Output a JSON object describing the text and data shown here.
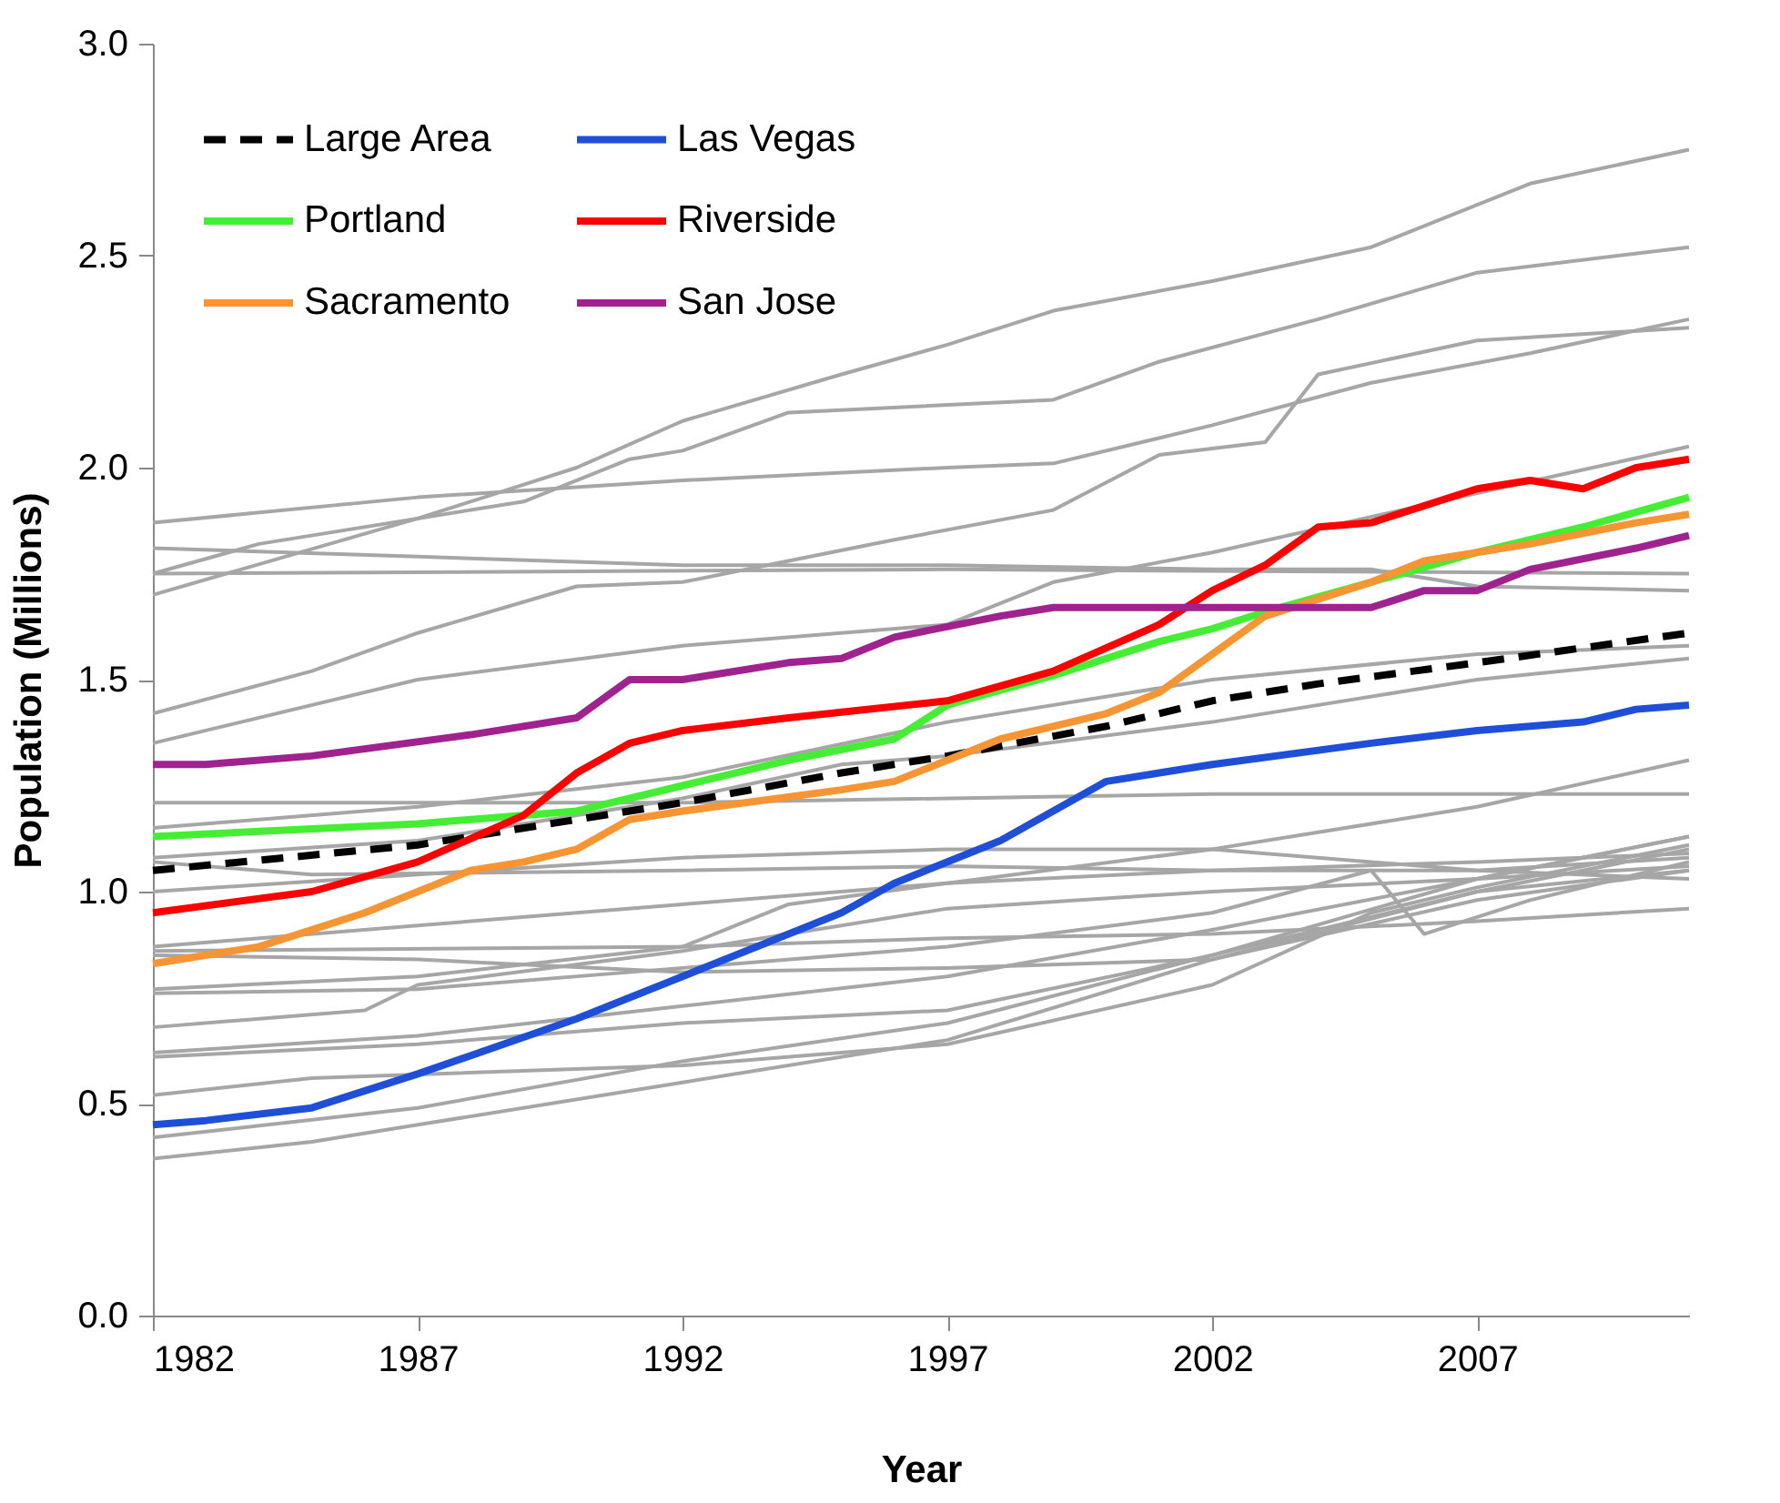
{
  "chart_data": {
    "type": "line",
    "xlabel": "Year",
    "ylabel": "Population (Millions)",
    "xlim": [
      1982,
      2011
    ],
    "xticks": [
      1982,
      1987,
      1992,
      1997,
      2002,
      2007
    ],
    "ylim": [
      0,
      3
    ],
    "yticks": [
      {
        "value": 0,
        "label": "0.0"
      },
      {
        "value": 0.5,
        "label": "0.5"
      },
      {
        "value": 1,
        "label": "1.0"
      },
      {
        "value": 1.5,
        "label": "1.5"
      },
      {
        "value": 2,
        "label": "2.0"
      },
      {
        "value": 2.5,
        "label": "2.5"
      },
      {
        "value": 3,
        "label": "3.0"
      }
    ],
    "grid": false,
    "legend": "top left",
    "marker": "none",
    "series": [
      {
        "color": "#a6a6a6",
        "x": [
          1982,
          1987,
          1990,
          1992,
          1995,
          1997,
          1999,
          2002,
          2005,
          2008,
          2011
        ],
        "values": [
          1.7,
          1.88,
          2.0,
          2.11,
          2.22,
          2.29,
          2.37,
          2.44,
          2.52,
          2.67,
          2.75
        ]
      },
      {
        "color": "#a6a6a6",
        "x": [
          1982,
          1987,
          1992,
          1997,
          1999,
          2002,
          2005,
          2008,
          2011
        ],
        "values": [
          1.87,
          1.93,
          1.97,
          2.0,
          2.01,
          2.1,
          2.2,
          2.27,
          2.35
        ]
      },
      {
        "color": "#a6a6a6",
        "x": [
          1982,
          1984,
          1989,
          1991,
          1992,
          1994,
          1999,
          2001,
          2004,
          2007,
          2011
        ],
        "values": [
          1.75,
          1.82,
          1.92,
          2.02,
          2.04,
          2.13,
          2.16,
          2.25,
          2.35,
          2.46,
          2.52
        ]
      },
      {
        "color": "#a6a6a6",
        "x": [
          1982,
          1987,
          1992,
          1997,
          2002,
          2005,
          2007,
          2011
        ],
        "values": [
          1.81,
          1.79,
          1.77,
          1.77,
          1.76,
          1.76,
          1.72,
          1.71
        ]
      },
      {
        "color": "#a6a6a6",
        "x": [
          1982,
          1997,
          2011
        ],
        "values": [
          1.75,
          1.76,
          1.75
        ]
      },
      {
        "color": "#a6a6a6",
        "x": [
          1982,
          1985,
          1987,
          1990,
          1992,
          1994,
          1996,
          1999,
          2001,
          2003,
          2004,
          2007,
          2011
        ],
        "values": [
          1.42,
          1.52,
          1.61,
          1.72,
          1.73,
          1.78,
          1.83,
          1.9,
          2.03,
          2.06,
          2.22,
          2.3,
          2.33
        ]
      },
      {
        "color": "#a6a6a6",
        "x": [
          1982,
          1987,
          1992,
          1997,
          1999,
          2002,
          2007,
          2011
        ],
        "values": [
          1.35,
          1.5,
          1.58,
          1.63,
          1.73,
          1.8,
          1.94,
          2.05
        ]
      },
      {
        "color": "#a6a6a6",
        "x": [
          1982,
          1992,
          2002,
          2011
        ],
        "values": [
          1.21,
          1.21,
          1.23,
          1.23
        ]
      },
      {
        "color": "#a6a6a6",
        "x": [
          1982,
          1985,
          1992,
          1997,
          2002,
          2007,
          2011
        ],
        "values": [
          1.07,
          1.04,
          1.05,
          1.06,
          1.05,
          1.07,
          1.09
        ]
      },
      {
        "color": "#a6a6a6",
        "x": [
          1982,
          1987,
          1992,
          1995,
          1997,
          2002,
          2007,
          2011
        ],
        "values": [
          1.08,
          1.12,
          1.22,
          1.3,
          1.32,
          1.4,
          1.5,
          1.55
        ]
      },
      {
        "color": "#a6a6a6",
        "x": [
          1982,
          1987,
          1992,
          1997,
          2002,
          2007,
          2011
        ],
        "values": [
          1.15,
          1.2,
          1.27,
          1.4,
          1.5,
          1.56,
          1.58
        ]
      },
      {
        "color": "#a6a6a6",
        "x": [
          1982,
          1992,
          1997,
          2002,
          2007,
          2011
        ],
        "values": [
          0.86,
          0.87,
          0.89,
          0.9,
          0.93,
          0.96
        ]
      },
      {
        "color": "#a6a6a6",
        "x": [
          1982,
          1987,
          1992,
          1994,
          1997,
          2002,
          2007,
          2011
        ],
        "values": [
          0.77,
          0.8,
          0.87,
          0.97,
          1.02,
          1.1,
          1.2,
          1.31
        ]
      },
      {
        "color": "#a6a6a6",
        "x": [
          1982,
          1987,
          1992,
          1997,
          2002,
          2005,
          2006,
          2008,
          2011
        ],
        "values": [
          0.76,
          0.77,
          0.82,
          0.87,
          0.95,
          1.05,
          0.9,
          0.98,
          1.07
        ]
      },
      {
        "color": "#a6a6a6",
        "x": [
          1982,
          1986,
          1987,
          1992,
          1997,
          2002,
          2007,
          2011
        ],
        "values": [
          0.68,
          0.72,
          0.78,
          0.86,
          0.96,
          1.0,
          1.03,
          1.06
        ]
      },
      {
        "color": "#a6a6a6",
        "x": [
          1982,
          1987,
          1992,
          1997,
          2002,
          2007,
          2011
        ],
        "values": [
          0.62,
          0.66,
          0.73,
          0.8,
          0.91,
          1.03,
          1.13
        ]
      },
      {
        "color": "#a6a6a6",
        "x": [
          1982,
          1987,
          1992,
          1997,
          2002,
          2007,
          2011
        ],
        "values": [
          0.61,
          0.64,
          0.69,
          0.72,
          0.85,
          1.0,
          1.1
        ]
      },
      {
        "color": "#a6a6a6",
        "x": [
          1982,
          1985,
          1992,
          1997,
          2002,
          2005,
          2007,
          2011
        ],
        "values": [
          0.52,
          0.56,
          0.59,
          0.64,
          0.78,
          0.95,
          1.01,
          1.11
        ]
      },
      {
        "color": "#a6a6a6",
        "x": [
          1982,
          1987,
          1992,
          1997,
          2002,
          2007,
          2011
        ],
        "values": [
          0.42,
          0.49,
          0.6,
          0.69,
          0.85,
          1.03,
          1.13
        ]
      },
      {
        "color": "#a6a6a6",
        "x": [
          1982,
          1985,
          1987,
          1992,
          1997,
          2002,
          2007,
          2011
        ],
        "values": [
          0.37,
          0.41,
          0.45,
          0.55,
          0.65,
          0.84,
          1.0,
          1.05
        ]
      },
      {
        "color": "#a6a6a6",
        "x": [
          1982,
          1987,
          1992,
          1997,
          2002,
          2007,
          2011
        ],
        "values": [
          1.0,
          1.04,
          1.08,
          1.1,
          1.1,
          1.05,
          1.03
        ]
      },
      {
        "color": "#a6a6a6",
        "x": [
          1982,
          1987,
          1992,
          1997,
          2002,
          2007,
          2011
        ],
        "values": [
          0.87,
          0.92,
          0.97,
          1.02,
          1.05,
          1.05,
          1.08
        ]
      },
      {
        "color": "#a6a6a6",
        "x": [
          1982,
          1987,
          1992,
          1997,
          2002,
          2007,
          2011
        ],
        "values": [
          0.85,
          0.84,
          0.81,
          0.82,
          0.84,
          0.98,
          1.05
        ]
      },
      {
        "name": "Large Area",
        "color": "#000000",
        "line_style": "dashed",
        "x": [
          1982,
          1987,
          1992,
          1995,
          1997,
          2000,
          2002,
          2004,
          2007,
          2011
        ],
        "values": [
          1.05,
          1.11,
          1.21,
          1.28,
          1.32,
          1.39,
          1.45,
          1.49,
          1.54,
          1.61
        ]
      },
      {
        "name": "Las Vegas",
        "color": "#1f4fd8",
        "x": [
          1982,
          1983,
          1985,
          1987,
          1990,
          1992,
          1995,
          1996,
          1998,
          2000,
          2002,
          2005,
          2007,
          2009,
          2010,
          2011
        ],
        "values": [
          0.45,
          0.46,
          0.49,
          0.57,
          0.7,
          0.8,
          0.95,
          1.02,
          1.12,
          1.26,
          1.3,
          1.35,
          1.38,
          1.4,
          1.43,
          1.44
        ]
      },
      {
        "name": "Portland",
        "color": "#44ee33",
        "x": [
          1982,
          1987,
          1990,
          1992,
          1994,
          1996,
          1997,
          1999,
          2001,
          2002,
          2003,
          2005,
          2007,
          2009,
          2011
        ],
        "values": [
          1.13,
          1.16,
          1.19,
          1.25,
          1.31,
          1.36,
          1.44,
          1.51,
          1.59,
          1.62,
          1.66,
          1.73,
          1.8,
          1.86,
          1.93
        ]
      },
      {
        "name": "Riverside",
        "color": "#ff0000",
        "x": [
          1982,
          1985,
          1987,
          1989,
          1990,
          1991,
          1992,
          1994,
          1997,
          1999,
          2001,
          2002,
          2003,
          2004,
          2005,
          2007,
          2008,
          2009,
          2010,
          2011
        ],
        "values": [
          0.95,
          1.0,
          1.07,
          1.18,
          1.28,
          1.35,
          1.38,
          1.41,
          1.45,
          1.52,
          1.63,
          1.71,
          1.77,
          1.86,
          1.87,
          1.95,
          1.97,
          1.95,
          2.0,
          2.02
        ]
      },
      {
        "name": "Sacramento",
        "color": "#f79433",
        "x": [
          1982,
          1984,
          1986,
          1987,
          1988,
          1989,
          1990,
          1991,
          1992,
          1995,
          1996,
          1997,
          1998,
          2000,
          2001,
          2002,
          2003,
          2005,
          2006,
          2008,
          2010,
          2011
        ],
        "values": [
          0.83,
          0.87,
          0.95,
          1.0,
          1.05,
          1.07,
          1.1,
          1.17,
          1.19,
          1.24,
          1.26,
          1.31,
          1.36,
          1.42,
          1.47,
          1.56,
          1.65,
          1.73,
          1.78,
          1.82,
          1.87,
          1.89
        ]
      },
      {
        "name": "San Jose",
        "color": "#a0228f",
        "x": [
          1982,
          1983,
          1985,
          1988,
          1990,
          1991,
          1992,
          1994,
          1995,
          1996,
          1998,
          1999,
          2005,
          2006,
          2007,
          2008,
          2010,
          2011
        ],
        "values": [
          1.3,
          1.3,
          1.32,
          1.37,
          1.41,
          1.5,
          1.5,
          1.54,
          1.55,
          1.6,
          1.65,
          1.67,
          1.67,
          1.71,
          1.71,
          1.76,
          1.81,
          1.84
        ]
      }
    ]
  }
}
